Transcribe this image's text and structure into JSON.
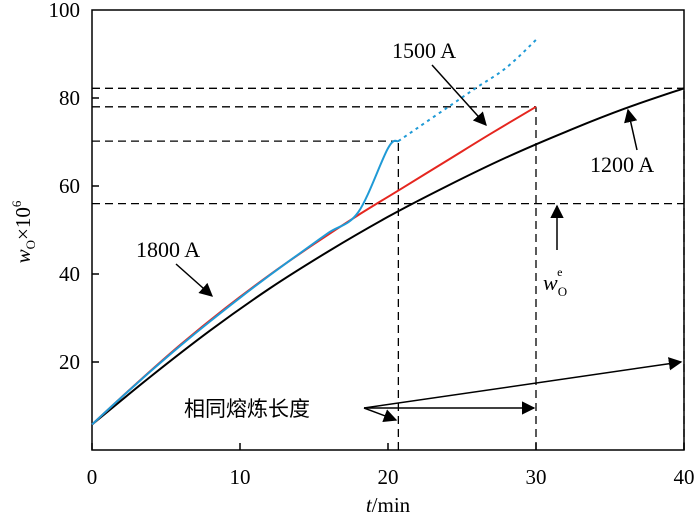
{
  "chart_data": {
    "type": "line",
    "x_ticks": [
      "0",
      "10",
      "20",
      "30",
      "40"
    ],
    "y_ticks": [
      "20",
      "40",
      "60",
      "80",
      "100"
    ],
    "xlim": [
      0,
      40
    ],
    "ylim": [
      0,
      100
    ],
    "xlabel_italic": "t",
    "xlabel_unit": "/min",
    "ylabel_var": "w",
    "ylabel_sub": "O",
    "ylabel_times": "×10",
    "ylabel_exp": "6",
    "series": [
      {
        "name": "1800 A",
        "color": "#1f9ad6",
        "x": [
          0,
          2,
          4,
          6,
          8,
          10,
          12,
          14,
          16,
          18,
          20,
          20.7
        ],
        "y": [
          5.8,
          12.0,
          18.0,
          23.8,
          29.3,
          34.6,
          39.7,
          44.6,
          49.4,
          54.1,
          68.6,
          70.2
        ],
        "dotted_x": [
          20.7,
          22,
          24,
          26,
          28,
          30
        ],
        "dotted_y": [
          70.2,
          73.2,
          77.8,
          82.4,
          86.9,
          93.2
        ]
      },
      {
        "name": "1500 A",
        "color": "#e5261f",
        "x": [
          0,
          3,
          6,
          9,
          12,
          15,
          18,
          21,
          24,
          27,
          30
        ],
        "y": [
          5.8,
          15.1,
          24.0,
          32.2,
          39.8,
          46.8,
          53.4,
          59.6,
          65.8,
          72.0,
          78.0
        ]
      },
      {
        "name": "1200 A",
        "color": "#000000",
        "x": [
          0,
          4,
          8,
          12,
          16,
          20,
          24,
          28,
          32,
          36,
          40
        ],
        "y": [
          5.8,
          16.8,
          27.2,
          36.7,
          45.2,
          53.0,
          60.0,
          66.5,
          72.3,
          77.6,
          82.2
        ]
      }
    ],
    "reference_y": [
      82.2,
      78.0,
      70.2,
      56.0
    ],
    "reference_x": [
      20.7,
      30,
      40
    ],
    "labels": {
      "l1500": "1500 A",
      "l1200": "1200 A",
      "l1800": "1800 A",
      "equilibrium_var": "w",
      "equilibrium_sub": "O",
      "equilibrium_sup": "e",
      "same_length": "相同熔炼长度"
    }
  }
}
